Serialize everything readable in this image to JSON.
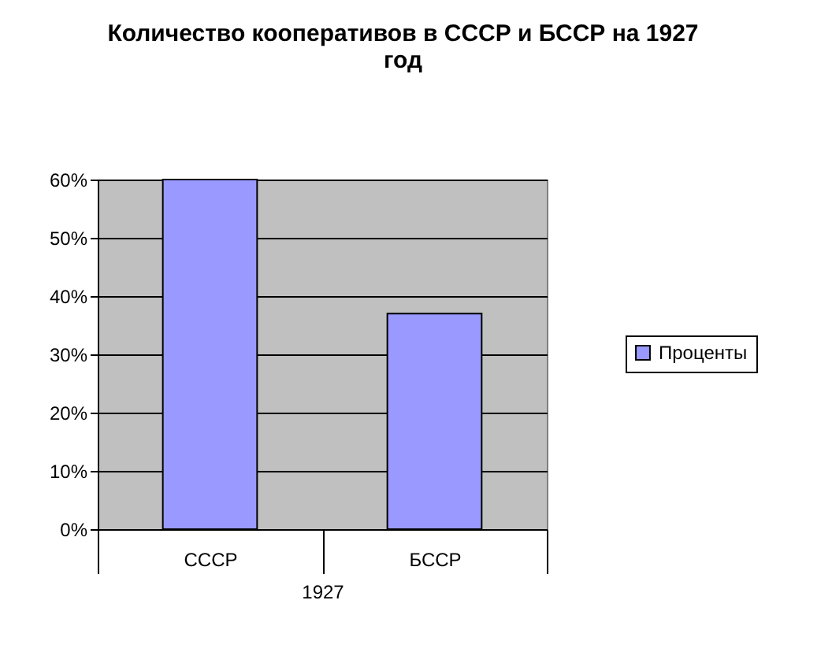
{
  "chart_data": {
    "type": "bar",
    "title": "Количество кооперативов в СССР и БССР на 1927 год",
    "xlabel": "1927",
    "categories": [
      "СССР",
      "БССР"
    ],
    "series": [
      {
        "name": "Проценты",
        "color": "#9999ff",
        "values": [
          60,
          37
        ]
      }
    ],
    "ylim": [
      0,
      60
    ],
    "yticks": [
      {
        "value": 0,
        "label": "0%"
      },
      {
        "value": 10,
        "label": "10%"
      },
      {
        "value": 20,
        "label": "20%"
      },
      {
        "value": 30,
        "label": "30%"
      },
      {
        "value": 40,
        "label": "40%"
      },
      {
        "value": 50,
        "label": "50%"
      },
      {
        "value": 60,
        "label": "60%"
      }
    ],
    "grid": "y",
    "legend": "right"
  }
}
